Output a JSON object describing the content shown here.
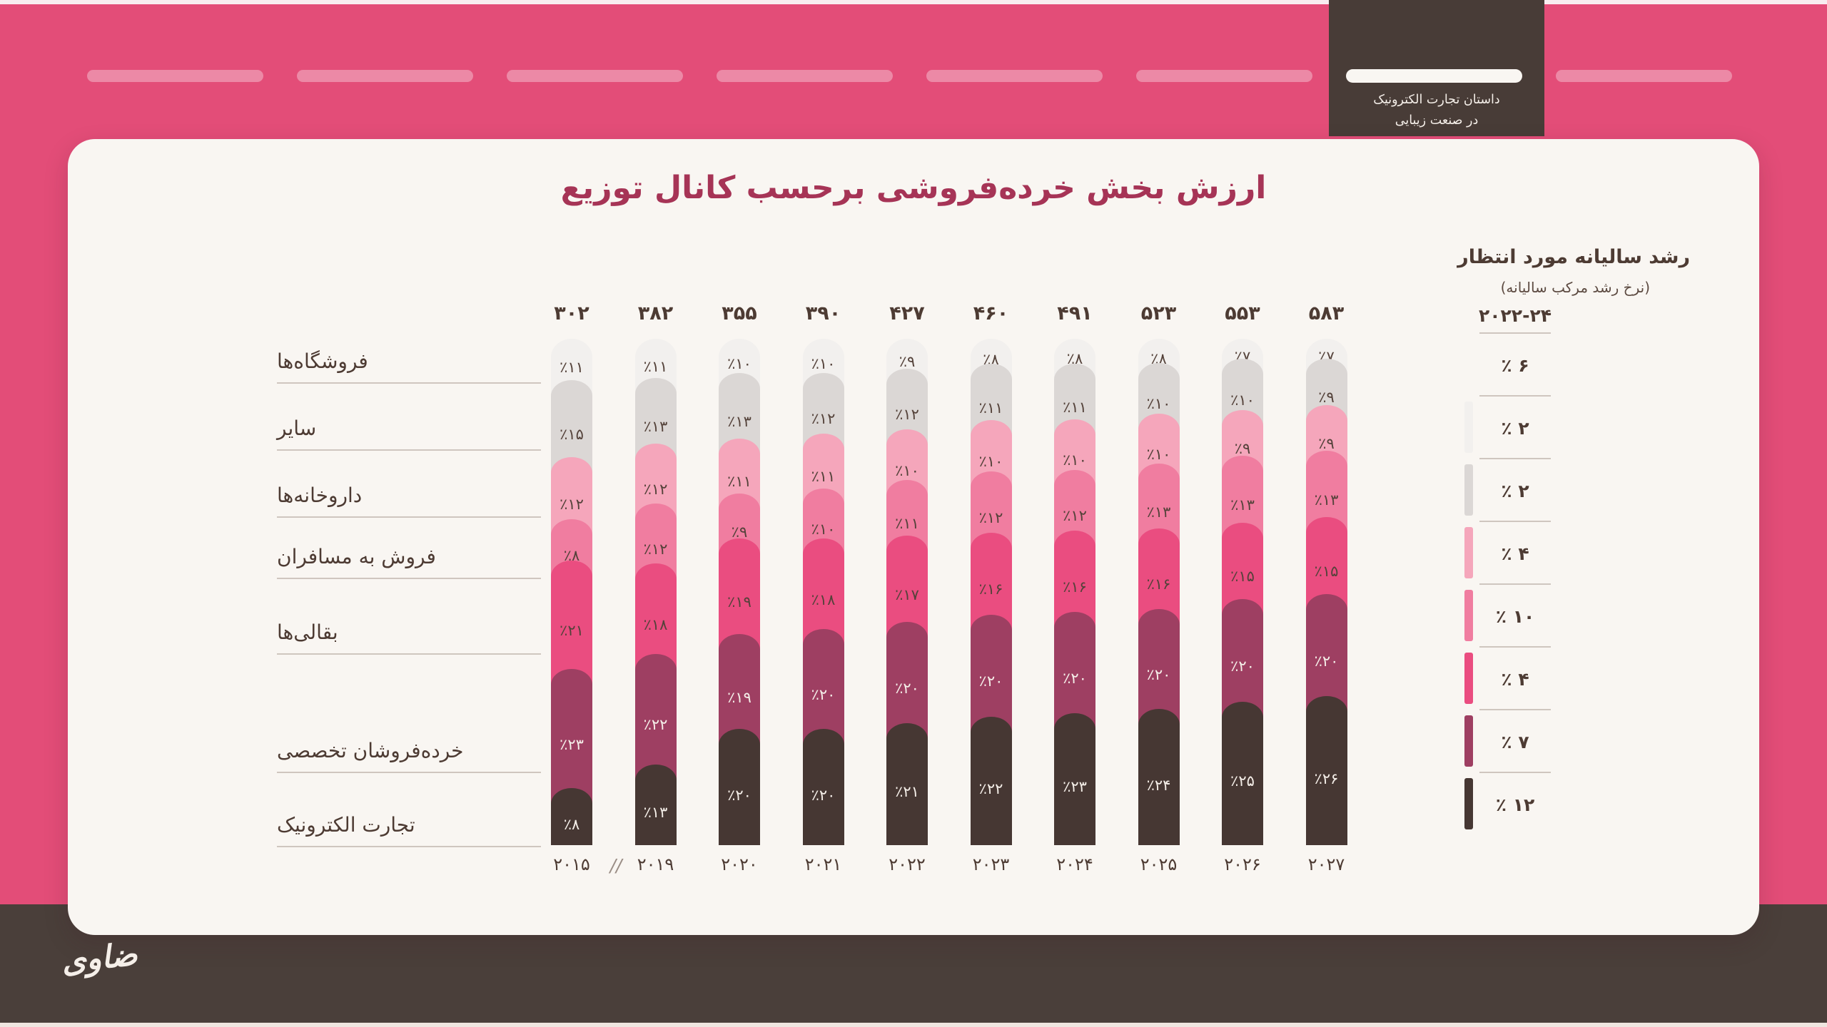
{
  "colors": {
    "background": "#e34d78",
    "card": "#f9f6f2",
    "tab": "#483c37",
    "footer": "#4a3f3a",
    "accent_title": "#a63456",
    "text_dark": "#4d3b33",
    "text_light": "#f5efe9",
    "pill": "rgba(255,255,255,0.34)",
    "pill_active": "#f9f6f2",
    "line": "#cfc6bf",
    "top_strip": "#f8edf0",
    "bottom_strip": "#efe6e0"
  },
  "progress": {
    "count": 8,
    "active_index": 6
  },
  "tab": {
    "line1": "داستان تجارت الکترونیک",
    "line2": "در صنعت زیبایی"
  },
  "title": "ارزش بخش خرده‌فروشی برحسب کانال توزیع",
  "growth_legend": {
    "title": "رشد سالیانه مورد انتظار",
    "subtitle": "(نرخ رشد مرکب سالیانه)",
    "range": "۲۰۲۲-۲۴",
    "rows": [
      {
        "value": 6,
        "display": "٪ ۶",
        "chip": null
      },
      {
        "value": 2,
        "display": "٪ ۲",
        "chip": "#f2f0ee"
      },
      {
        "value": 2,
        "display": "٪ ۲",
        "chip": "#dbd7d5"
      },
      {
        "value": 4,
        "display": "٪ ۴",
        "chip": "#f5a6bb"
      },
      {
        "value": 10,
        "display": "٪ ۱۰",
        "chip": "#f07da0"
      },
      {
        "value": 4,
        "display": "٪ ۴",
        "chip": "#ea4d80"
      },
      {
        "value": 7,
        "display": "٪ ۷",
        "chip": "#9e3f62"
      },
      {
        "value": 12,
        "display": "٪ ۱۲",
        "chip": "#463733"
      }
    ]
  },
  "chart_data": {
    "type": "stacked-bar-100",
    "title": "ارزش بخش خرده‌فروشی برحسب کانال توزیع",
    "x": [
      "۲۰۱۵",
      "۲۰۱۹",
      "۲۰۲۰",
      "۲۰۲۱",
      "۲۰۲۲",
      "۲۰۲۳",
      "۲۰۲۴",
      "۲۰۲۵",
      "۲۰۲۶",
      "۲۰۲۷"
    ],
    "x_latin": [
      2015,
      2019,
      2020,
      2021,
      2022,
      2023,
      2024,
      2025,
      2026,
      2027
    ],
    "axis_break_after_index": 0,
    "totals_display": [
      "۳۰۲",
      "۳۸۲",
      "۳۵۵",
      "۳۹۰",
      "۴۲۷",
      "۴۶۰",
      "۴۹۱",
      "۵۲۳",
      "۵۵۳",
      "۵۸۳"
    ],
    "totals": [
      302,
      382,
      355,
      390,
      427,
      460,
      491,
      523,
      553,
      583
    ],
    "series": [
      {
        "name": "فروشگاه‌ها",
        "color": "#f2f0ee",
        "label_color": "dark",
        "growth_pct": 2,
        "values_pct": [
          11,
          11,
          10,
          10,
          9,
          8,
          8,
          8,
          7,
          7
        ]
      },
      {
        "name": "سایر",
        "color": "#dbd7d5",
        "label_color": "dark",
        "growth_pct": 2,
        "values_pct": [
          15,
          13,
          13,
          12,
          12,
          11,
          11,
          10,
          10,
          9
        ]
      },
      {
        "name": "داروخانه‌ها",
        "color": "#f5a6bb",
        "label_color": "dark",
        "growth_pct": 4,
        "values_pct": [
          12,
          12,
          11,
          11,
          10,
          10,
          10,
          10,
          9,
          9
        ]
      },
      {
        "name": "فروش به مسافران",
        "color": "#f07da0",
        "label_color": "dark",
        "growth_pct": 10,
        "values_pct": [
          8,
          12,
          9,
          10,
          11,
          12,
          12,
          13,
          13,
          13
        ]
      },
      {
        "name": "بقالی‌ها",
        "color": "#ea4d80",
        "label_color": "dark",
        "growth_pct": 4,
        "values_pct": [
          21,
          18,
          19,
          18,
          17,
          16,
          16,
          16,
          15,
          15
        ]
      },
      {
        "name": "خرده‌فروشان تخصصی",
        "color": "#9e3f62",
        "label_color": "light",
        "growth_pct": 7,
        "values_pct": [
          23,
          22,
          19,
          20,
          20,
          20,
          20,
          20,
          20,
          20
        ]
      },
      {
        "name": "تجارت الکترونیک",
        "color": "#463733",
        "label_color": "light",
        "growth_pct": 12,
        "values_pct": [
          8,
          13,
          20,
          20,
          21,
          22,
          23,
          24,
          25,
          26
        ]
      }
    ]
  },
  "axis_break_symbol": "//",
  "logo": "ضاوی"
}
